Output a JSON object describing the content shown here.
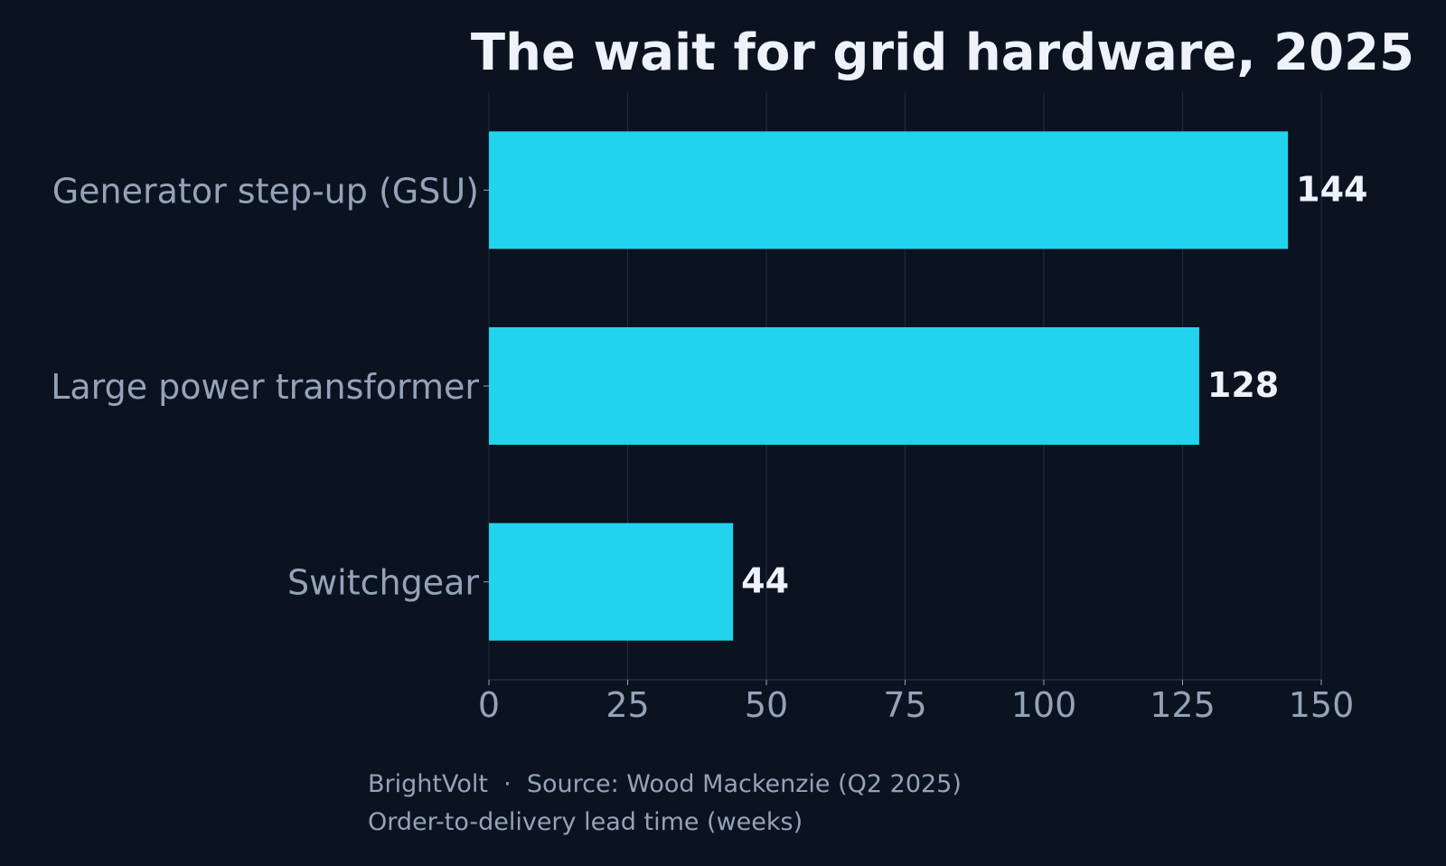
{
  "chart_data": {
    "type": "bar",
    "orientation": "horizontal",
    "title": "The wait for grid hardware, 2025",
    "categories": [
      "Generator step-up (GSU)",
      "Large power transformer",
      "Switchgear"
    ],
    "values": [
      144,
      128,
      44
    ],
    "xlim": [
      0,
      150
    ],
    "xticks": [
      0,
      25,
      50,
      75,
      100,
      125,
      150
    ],
    "grid": "vertical",
    "legend": "none",
    "source": "BrightVolt  ·  Source: Wood Mackenzie (Q2 2025)",
    "note": "Order-to-delivery lead time (weeks)"
  },
  "colors": {
    "background": "#0b1320",
    "bar": "#22d3ee",
    "title": "#eef2fb",
    "value_label": "#eef2fb",
    "axis_text": "#94a3b8",
    "grid": "#1f2a3e",
    "axis_line": "#2a3448"
  }
}
